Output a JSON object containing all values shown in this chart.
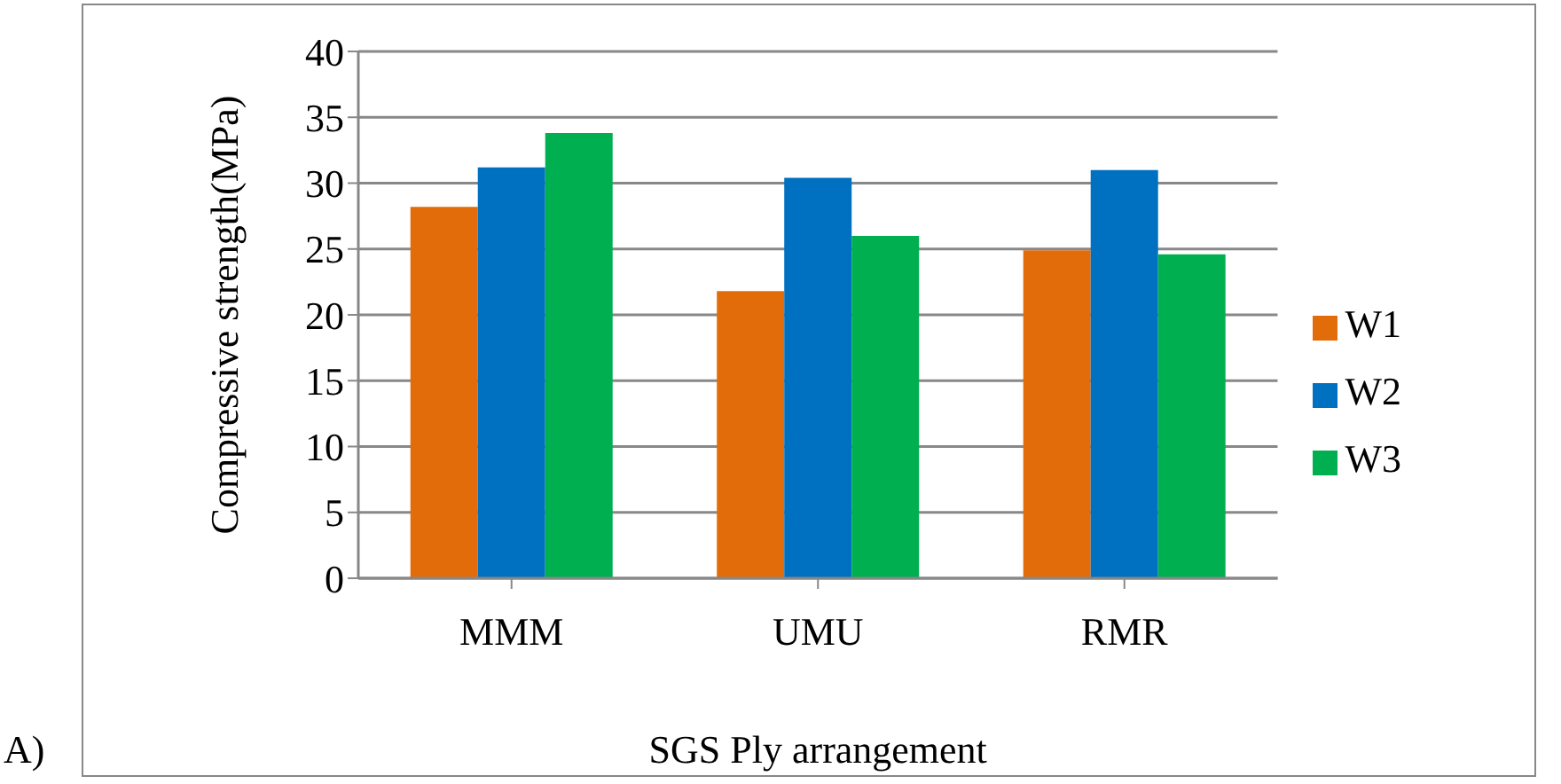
{
  "chart_data": {
    "type": "bar",
    "xlabel": "SGS Ply arrangement",
    "ylabel": "Compressive strength(MPa)",
    "annotations": [
      "A)"
    ],
    "categories": [
      "MMM",
      "UMU",
      "RMR"
    ],
    "series": [
      {
        "name": "W1",
        "color": "#e36c0a",
        "values": [
          28.2,
          21.8,
          24.9
        ]
      },
      {
        "name": "W2",
        "color": "#0070c0",
        "values": [
          31.2,
          30.4,
          31.0
        ]
      },
      {
        "name": "W3",
        "color": "#00b050",
        "values": [
          33.8,
          26.0,
          24.6
        ]
      }
    ],
    "ylim": [
      0,
      40
    ],
    "yticks": [
      0,
      5,
      10,
      15,
      20,
      25,
      30,
      35,
      40
    ],
    "grid": "y",
    "legend": "right"
  }
}
